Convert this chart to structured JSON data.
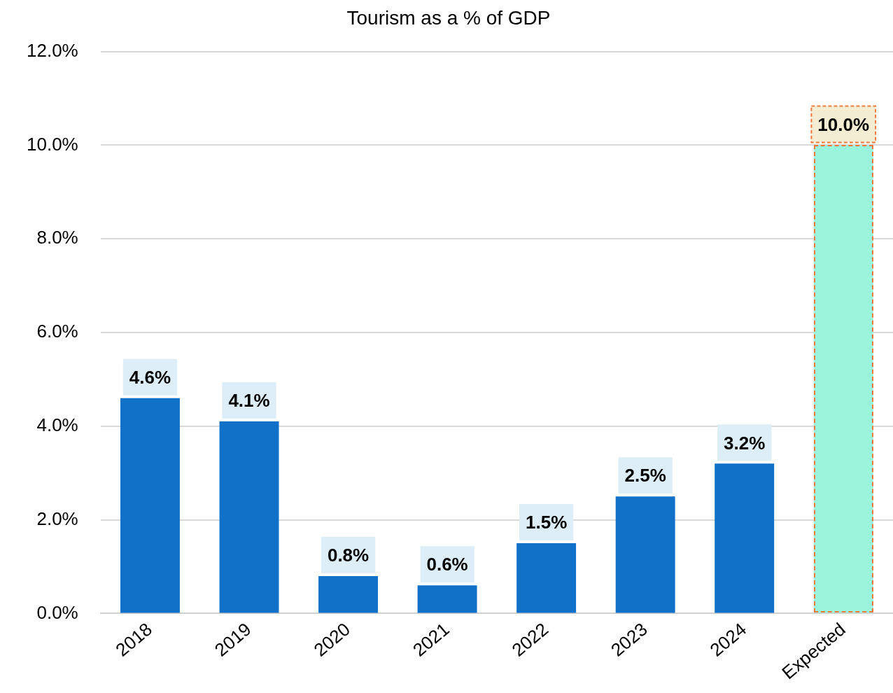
{
  "chart_data": {
    "type": "bar",
    "title": "Tourism as a % of GDP",
    "categories": [
      "2018",
      "2019",
      "2020",
      "2021",
      "2022",
      "2023",
      "2024",
      "Expected"
    ],
    "series": [
      {
        "color": "#1170c8",
        "values": [
          4.6,
          4.1,
          0.8,
          0.6,
          1.5,
          2.5,
          3.2,
          null
        ],
        "value_labels": [
          "4.6%",
          "4.1%",
          "0.8%",
          "0.6%",
          "1.5%",
          "2.5%",
          "3.2%",
          null
        ]
      },
      {
        "color": "#9af5dc",
        "line_style": "dashed",
        "values": [
          null,
          null,
          null,
          null,
          null,
          null,
          null,
          10.0
        ],
        "value_labels": [
          null,
          null,
          null,
          null,
          null,
          null,
          null,
          "10.0%"
        ]
      }
    ],
    "ylim": [
      0,
      12
    ],
    "yticks": [
      {
        "value": 0,
        "label": "0.0%"
      },
      {
        "value": 2,
        "label": "2.0%"
      },
      {
        "value": 4,
        "label": "4.0%"
      },
      {
        "value": 6,
        "label": "6.0%"
      },
      {
        "value": 8,
        "label": "8.0%"
      },
      {
        "value": 10,
        "label": "10.0%"
      },
      {
        "value": 12,
        "label": "12.0%"
      }
    ],
    "grid": "y",
    "legend": false
  }
}
